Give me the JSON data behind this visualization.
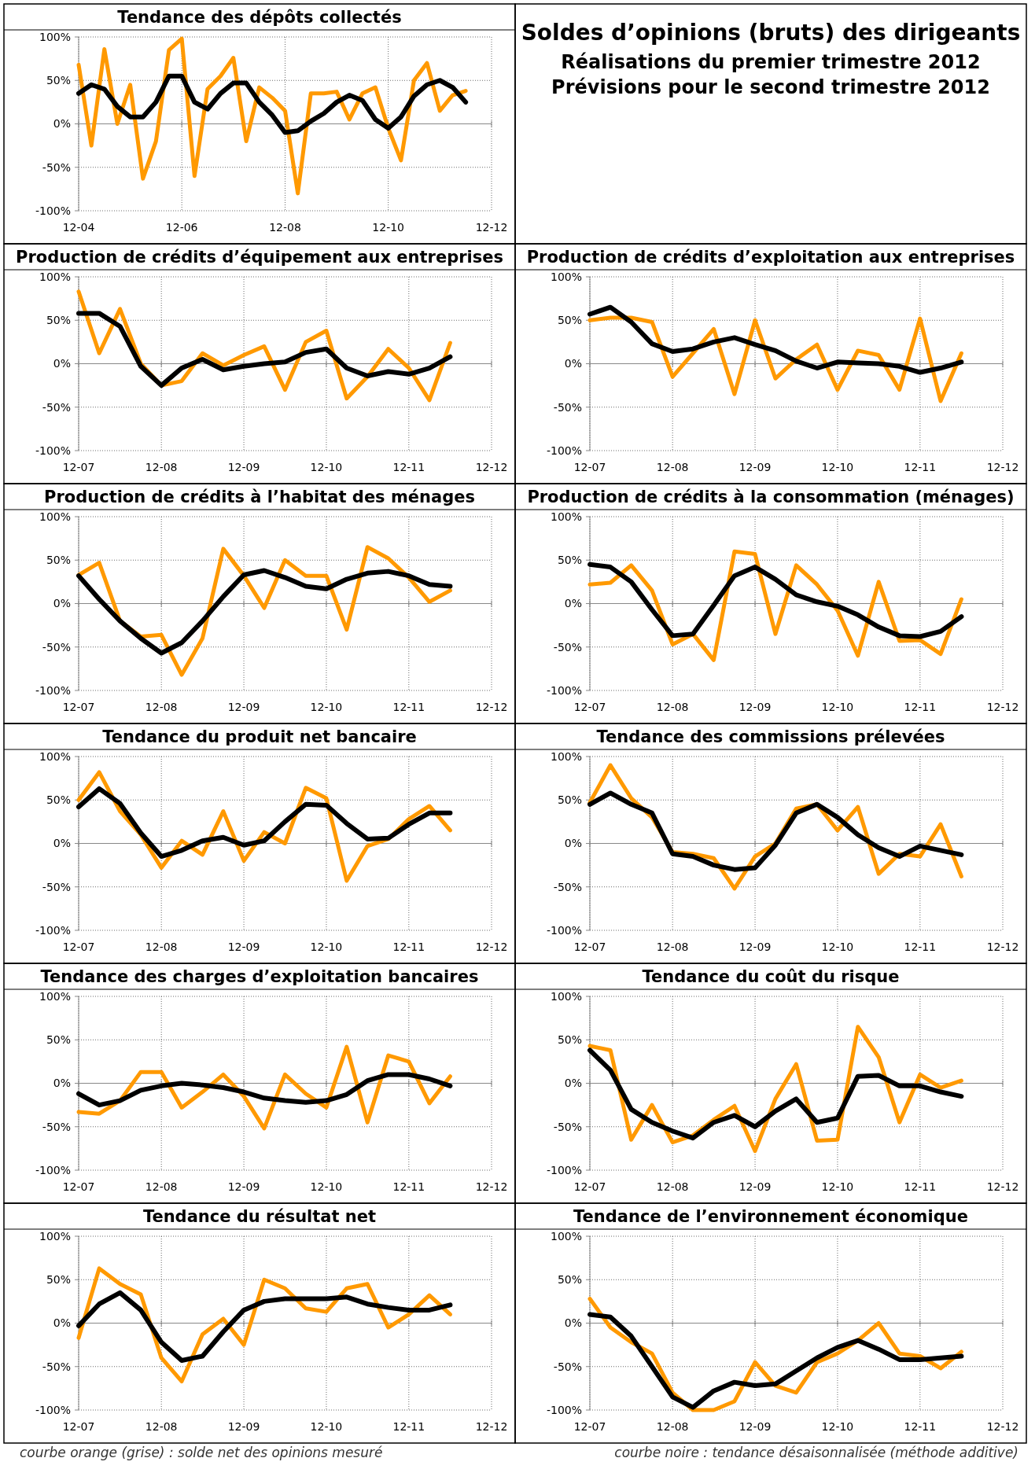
{
  "chart_data": [
    {
      "type": "line",
      "title": "Tendance des dépôts collectés",
      "x": [
        "2004-12",
        "2005-03",
        "2005-06",
        "2005-09",
        "2005-12",
        "2006-03",
        "2006-06",
        "2006-09",
        "2006-12",
        "2007-03",
        "2007-06",
        "2007-09",
        "2007-12",
        "2008-03",
        "2008-06",
        "2008-09",
        "2008-12",
        "2009-03",
        "2009-06",
        "2009-09",
        "2009-12",
        "2010-03",
        "2010-06",
        "2010-09",
        "2010-12",
        "2011-03",
        "2011-06",
        "2011-09",
        "2011-12",
        "2012-03",
        "2012-06"
      ],
      "xlim": [
        "2004-12",
        "2012-12"
      ],
      "xticks": [
        {
          "value": "2004-12",
          "label": "12-04"
        },
        {
          "value": "2006-12",
          "label": "12-06"
        },
        {
          "value": "2008-12",
          "label": "12-08"
        },
        {
          "value": "2010-12",
          "label": "12-10"
        },
        {
          "value": "2012-12",
          "label": "12-12"
        }
      ],
      "ylim": [
        -100,
        100
      ],
      "yticks": [
        {
          "value": -100,
          "label": "-100%"
        },
        {
          "value": -50,
          "label": "-50%"
        },
        {
          "value": 0,
          "label": "0%"
        },
        {
          "value": 50,
          "label": "50%"
        },
        {
          "value": 100,
          "label": "100%"
        }
      ],
      "grid": true,
      "line_style": "solid",
      "series": [
        {
          "color": "#ff9900",
          "values": [
            68,
            -25,
            86,
            0,
            45,
            -63,
            -20,
            85,
            98,
            -60,
            40,
            55,
            76,
            -20,
            42,
            30,
            15,
            -80,
            35,
            35,
            37,
            5,
            35,
            42,
            -5,
            -42,
            50,
            70,
            15,
            33,
            38
          ]
        },
        {
          "color": "#000000",
          "values": [
            35,
            45,
            40,
            20,
            8,
            8,
            25,
            55,
            55,
            25,
            17,
            35,
            47,
            47,
            25,
            10,
            -10,
            -8,
            3,
            12,
            25,
            33,
            27,
            5,
            -5,
            8,
            32,
            45,
            50,
            42,
            25
          ]
        }
      ]
    },
    {
      "type": "other",
      "title": "Soldes d’opinions (bruts) des dirigeants",
      "subtitle": "Réalisations du premier trimestre 2012\nPrévisions pour le second trimestre 2012"
    },
    {
      "type": "line",
      "title": "Production de crédits d’équipement aux entreprises",
      "x": [
        "2007-12",
        "2008-03",
        "2008-06",
        "2008-09",
        "2008-12",
        "2009-03",
        "2009-06",
        "2009-09",
        "2009-12",
        "2010-03",
        "2010-06",
        "2010-09",
        "2010-12",
        "2011-03",
        "2011-06",
        "2011-09",
        "2011-12",
        "2012-03",
        "2012-06"
      ],
      "xlim": [
        "2007-12",
        "2012-12"
      ],
      "xticks": [
        {
          "value": "2007-12",
          "label": "12-07"
        },
        {
          "value": "2008-12",
          "label": "12-08"
        },
        {
          "value": "2009-12",
          "label": "12-09"
        },
        {
          "value": "2010-12",
          "label": "12-10"
        },
        {
          "value": "2011-12",
          "label": "12-11"
        },
        {
          "value": "2012-12",
          "label": "12-12"
        }
      ],
      "ylim": [
        -100,
        100
      ],
      "yticks": [
        {
          "value": -100,
          "label": "-100%"
        },
        {
          "value": -50,
          "label": "-50%"
        },
        {
          "value": 0,
          "label": "0%"
        },
        {
          "value": 50,
          "label": "50%"
        },
        {
          "value": 100,
          "label": "100%"
        }
      ],
      "grid": true,
      "line_style": "solid",
      "series": [
        {
          "color": "#ff9900",
          "values": [
            83,
            12,
            63,
            0,
            -25,
            -20,
            12,
            -2,
            10,
            20,
            -30,
            25,
            38,
            -40,
            -15,
            17,
            -5,
            -42,
            24
          ]
        },
        {
          "color": "#000000",
          "values": [
            58,
            58,
            43,
            -3,
            -25,
            -5,
            5,
            -7,
            -3,
            0,
            2,
            13,
            17,
            -5,
            -14,
            -9,
            -12,
            -5,
            8
          ]
        }
      ]
    },
    {
      "type": "line",
      "title": "Production de crédits d’exploitation aux entreprises",
      "x": [
        "2007-12",
        "2008-03",
        "2008-06",
        "2008-09",
        "2008-12",
        "2009-03",
        "2009-06",
        "2009-09",
        "2009-12",
        "2010-03",
        "2010-06",
        "2010-09",
        "2010-12",
        "2011-03",
        "2011-06",
        "2011-09",
        "2011-12",
        "2012-03",
        "2012-06"
      ],
      "xlim": [
        "2007-12",
        "2012-12"
      ],
      "xticks": [
        {
          "value": "2007-12",
          "label": "12-07"
        },
        {
          "value": "2008-12",
          "label": "12-08"
        },
        {
          "value": "2009-12",
          "label": "12-09"
        },
        {
          "value": "2010-12",
          "label": "12-10"
        },
        {
          "value": "2011-12",
          "label": "12-11"
        },
        {
          "value": "2012-12",
          "label": "12-12"
        }
      ],
      "ylim": [
        -100,
        100
      ],
      "yticks": [
        {
          "value": -100,
          "label": "-100%"
        },
        {
          "value": -50,
          "label": "-50%"
        },
        {
          "value": 0,
          "label": "0%"
        },
        {
          "value": 50,
          "label": "50%"
        },
        {
          "value": 100,
          "label": "100%"
        }
      ],
      "grid": true,
      "line_style": "solid",
      "series": [
        {
          "color": "#ff9900",
          "values": [
            50,
            53,
            53,
            48,
            -15,
            12,
            40,
            -35,
            50,
            -17,
            5,
            22,
            -30,
            15,
            10,
            -30,
            52,
            -43,
            12
          ]
        },
        {
          "color": "#000000",
          "values": [
            57,
            65,
            48,
            23,
            14,
            17,
            25,
            30,
            22,
            15,
            3,
            -5,
            2,
            1,
            0,
            -3,
            -10,
            -5,
            2
          ]
        }
      ]
    },
    {
      "type": "line",
      "title": "Production de crédits à l’habitat des ménages",
      "x": [
        "2007-12",
        "2008-03",
        "2008-06",
        "2008-09",
        "2008-12",
        "2009-03",
        "2009-06",
        "2009-09",
        "2009-12",
        "2010-03",
        "2010-06",
        "2010-09",
        "2010-12",
        "2011-03",
        "2011-06",
        "2011-09",
        "2011-12",
        "2012-03",
        "2012-06"
      ],
      "xlim": [
        "2007-12",
        "2012-12"
      ],
      "xticks": [
        {
          "value": "2007-12",
          "label": "12-07"
        },
        {
          "value": "2008-12",
          "label": "12-08"
        },
        {
          "value": "2009-12",
          "label": "12-09"
        },
        {
          "value": "2010-12",
          "label": "12-10"
        },
        {
          "value": "2011-12",
          "label": "12-11"
        },
        {
          "value": "2012-12",
          "label": "12-12"
        }
      ],
      "ylim": [
        -100,
        100
      ],
      "yticks": [
        {
          "value": -100,
          "label": "-100%"
        },
        {
          "value": -50,
          "label": "-50%"
        },
        {
          "value": 0,
          "label": "0%"
        },
        {
          "value": 50,
          "label": "50%"
        },
        {
          "value": 100,
          "label": "100%"
        }
      ],
      "grid": true,
      "line_style": "solid",
      "series": [
        {
          "color": "#ff9900",
          "values": [
            33,
            47,
            -20,
            -38,
            -36,
            -82,
            -40,
            63,
            32,
            -5,
            50,
            32,
            32,
            -30,
            65,
            52,
            30,
            2,
            15
          ]
        },
        {
          "color": "#000000",
          "values": [
            32,
            5,
            -20,
            -40,
            -57,
            -45,
            -20,
            8,
            33,
            38,
            30,
            20,
            17,
            28,
            35,
            37,
            32,
            22,
            20
          ]
        }
      ]
    },
    {
      "type": "line",
      "title": "Production de crédits à la consommation (ménages)",
      "x": [
        "2007-12",
        "2008-03",
        "2008-06",
        "2008-09",
        "2008-12",
        "2009-03",
        "2009-06",
        "2009-09",
        "2009-12",
        "2010-03",
        "2010-06",
        "2010-09",
        "2010-12",
        "2011-03",
        "2011-06",
        "2011-09",
        "2011-12",
        "2012-03",
        "2012-06"
      ],
      "xlim": [
        "2007-12",
        "2012-12"
      ],
      "xticks": [
        {
          "value": "2007-12",
          "label": "12-07"
        },
        {
          "value": "2008-12",
          "label": "12-08"
        },
        {
          "value": "2009-12",
          "label": "12-09"
        },
        {
          "value": "2010-12",
          "label": "12-10"
        },
        {
          "value": "2011-12",
          "label": "12-11"
        },
        {
          "value": "2012-12",
          "label": "12-12"
        }
      ],
      "ylim": [
        -100,
        100
      ],
      "yticks": [
        {
          "value": -100,
          "label": "-100%"
        },
        {
          "value": -50,
          "label": "-50%"
        },
        {
          "value": 0,
          "label": "0%"
        },
        {
          "value": 50,
          "label": "50%"
        },
        {
          "value": 100,
          "label": "100%"
        }
      ],
      "grid": true,
      "line_style": "solid",
      "series": [
        {
          "color": "#ff9900",
          "values": [
            22,
            24,
            44,
            15,
            -47,
            -35,
            -65,
            60,
            57,
            -35,
            44,
            22,
            -8,
            -60,
            25,
            -43,
            -42,
            -58,
            5
          ]
        },
        {
          "color": "#000000",
          "values": [
            45,
            42,
            25,
            -7,
            -37,
            -35,
            -2,
            32,
            42,
            28,
            10,
            2,
            -3,
            -13,
            -27,
            -37,
            -38,
            -32,
            -15
          ]
        }
      ]
    },
    {
      "type": "line",
      "title": "Tendance du produit net bancaire",
      "x": [
        "2007-12",
        "2008-03",
        "2008-06",
        "2008-09",
        "2008-12",
        "2009-03",
        "2009-06",
        "2009-09",
        "2009-12",
        "2010-03",
        "2010-06",
        "2010-09",
        "2010-12",
        "2011-03",
        "2011-06",
        "2011-09",
        "2011-12",
        "2012-03",
        "2012-06"
      ],
      "xlim": [
        "2007-12",
        "2012-12"
      ],
      "xticks": [
        {
          "value": "2007-12",
          "label": "12-07"
        },
        {
          "value": "2008-12",
          "label": "12-08"
        },
        {
          "value": "2009-12",
          "label": "12-09"
        },
        {
          "value": "2010-12",
          "label": "12-10"
        },
        {
          "value": "2011-12",
          "label": "12-11"
        },
        {
          "value": "2012-12",
          "label": "12-12"
        }
      ],
      "ylim": [
        -100,
        100
      ],
      "yticks": [
        {
          "value": -100,
          "label": "-100%"
        },
        {
          "value": -50,
          "label": "-50%"
        },
        {
          "value": 0,
          "label": "0%"
        },
        {
          "value": 50,
          "label": "50%"
        },
        {
          "value": 100,
          "label": "100%"
        }
      ],
      "grid": true,
      "line_style": "solid",
      "series": [
        {
          "color": "#ff9900",
          "values": [
            50,
            82,
            37,
            10,
            -28,
            3,
            -13,
            37,
            -20,
            13,
            0,
            64,
            52,
            -43,
            -3,
            5,
            28,
            43,
            15
          ]
        },
        {
          "color": "#000000",
          "values": [
            42,
            63,
            46,
            12,
            -15,
            -8,
            3,
            7,
            -2,
            3,
            25,
            45,
            44,
            23,
            5,
            6,
            22,
            35,
            35
          ]
        }
      ]
    },
    {
      "type": "line",
      "title": "Tendance des commissions prélevées",
      "x": [
        "2007-12",
        "2008-03",
        "2008-06",
        "2008-09",
        "2008-12",
        "2009-03",
        "2009-06",
        "2009-09",
        "2009-12",
        "2010-03",
        "2010-06",
        "2010-09",
        "2010-12",
        "2011-03",
        "2011-06",
        "2011-09",
        "2011-12",
        "2012-03",
        "2012-06"
      ],
      "xlim": [
        "2007-12",
        "2012-12"
      ],
      "xticks": [
        {
          "value": "2007-12",
          "label": "12-07"
        },
        {
          "value": "2008-12",
          "label": "12-08"
        },
        {
          "value": "2009-12",
          "label": "12-09"
        },
        {
          "value": "2010-12",
          "label": "12-10"
        },
        {
          "value": "2011-12",
          "label": "12-11"
        },
        {
          "value": "2012-12",
          "label": "12-12"
        }
      ],
      "ylim": [
        -100,
        100
      ],
      "yticks": [
        {
          "value": -100,
          "label": "-100%"
        },
        {
          "value": -50,
          "label": "-50%"
        },
        {
          "value": 0,
          "label": "0%"
        },
        {
          "value": 50,
          "label": "50%"
        },
        {
          "value": 100,
          "label": "100%"
        }
      ],
      "grid": true,
      "line_style": "solid",
      "series": [
        {
          "color": "#ff9900",
          "values": [
            47,
            90,
            52,
            30,
            -10,
            -12,
            -17,
            -52,
            -15,
            0,
            40,
            45,
            15,
            42,
            -35,
            -12,
            -15,
            22,
            -38
          ]
        },
        {
          "color": "#000000",
          "values": [
            45,
            58,
            45,
            35,
            -12,
            -15,
            -25,
            -30,
            -28,
            -2,
            35,
            45,
            30,
            10,
            -5,
            -15,
            -3,
            -8,
            -13
          ]
        }
      ]
    },
    {
      "type": "line",
      "title": "Tendance des charges d’exploitation bancaires",
      "x": [
        "2007-12",
        "2008-03",
        "2008-06",
        "2008-09",
        "2008-12",
        "2009-03",
        "2009-06",
        "2009-09",
        "2009-12",
        "2010-03",
        "2010-06",
        "2010-09",
        "2010-12",
        "2011-03",
        "2011-06",
        "2011-09",
        "2011-12",
        "2012-03",
        "2012-06"
      ],
      "xlim": [
        "2007-12",
        "2012-12"
      ],
      "xticks": [
        {
          "value": "2007-12",
          "label": "12-07"
        },
        {
          "value": "2008-12",
          "label": "12-08"
        },
        {
          "value": "2009-12",
          "label": "12-09"
        },
        {
          "value": "2010-12",
          "label": "12-10"
        },
        {
          "value": "2011-12",
          "label": "12-11"
        },
        {
          "value": "2012-12",
          "label": "12-12"
        }
      ],
      "ylim": [
        -100,
        100
      ],
      "yticks": [
        {
          "value": -100,
          "label": "-100%"
        },
        {
          "value": -50,
          "label": "-50%"
        },
        {
          "value": 0,
          "label": "0%"
        },
        {
          "value": 50,
          "label": "50%"
        },
        {
          "value": 100,
          "label": "100%"
        }
      ],
      "grid": true,
      "line_style": "solid",
      "series": [
        {
          "color": "#ff9900",
          "values": [
            -33,
            -35,
            -20,
            13,
            13,
            -28,
            -10,
            10,
            -15,
            -52,
            10,
            -12,
            -28,
            42,
            -45,
            32,
            25,
            -23,
            8
          ]
        },
        {
          "color": "#000000",
          "values": [
            -12,
            -25,
            -20,
            -8,
            -3,
            0,
            -2,
            -5,
            -10,
            -17,
            -20,
            -22,
            -20,
            -13,
            3,
            10,
            10,
            5,
            -3
          ]
        }
      ]
    },
    {
      "type": "line",
      "title": "Tendance du coût du risque",
      "x": [
        "2007-12",
        "2008-03",
        "2008-06",
        "2008-09",
        "2008-12",
        "2009-03",
        "2009-06",
        "2009-09",
        "2009-12",
        "2010-03",
        "2010-06",
        "2010-09",
        "2010-12",
        "2011-03",
        "2011-06",
        "2011-09",
        "2011-12",
        "2012-03",
        "2012-06"
      ],
      "xlim": [
        "2007-12",
        "2012-12"
      ],
      "xticks": [
        {
          "value": "2007-12",
          "label": "12-07"
        },
        {
          "value": "2008-12",
          "label": "12-08"
        },
        {
          "value": "2009-12",
          "label": "12-09"
        },
        {
          "value": "2010-12",
          "label": "12-10"
        },
        {
          "value": "2011-12",
          "label": "12-11"
        },
        {
          "value": "2012-12",
          "label": "12-12"
        }
      ],
      "ylim": [
        -100,
        100
      ],
      "yticks": [
        {
          "value": -100,
          "label": "-100%"
        },
        {
          "value": -50,
          "label": "-50%"
        },
        {
          "value": 0,
          "label": "0%"
        },
        {
          "value": 50,
          "label": "50%"
        },
        {
          "value": 100,
          "label": "100%"
        }
      ],
      "grid": true,
      "line_style": "solid",
      "series": [
        {
          "color": "#ff9900",
          "values": [
            43,
            38,
            -65,
            -25,
            -68,
            -60,
            -42,
            -26,
            -78,
            -18,
            22,
            -66,
            -65,
            65,
            30,
            -45,
            10,
            -5,
            3
          ]
        },
        {
          "color": "#000000",
          "values": [
            38,
            15,
            -30,
            -45,
            -55,
            -63,
            -45,
            -37,
            -50,
            -32,
            -18,
            -45,
            -40,
            8,
            9,
            -3,
            -3,
            -10,
            -15
          ]
        }
      ]
    },
    {
      "type": "line",
      "title": "Tendance du résultat net",
      "x": [
        "2007-12",
        "2008-03",
        "2008-06",
        "2008-09",
        "2008-12",
        "2009-03",
        "2009-06",
        "2009-09",
        "2009-12",
        "2010-03",
        "2010-06",
        "2010-09",
        "2010-12",
        "2011-03",
        "2011-06",
        "2011-09",
        "2011-12",
        "2012-03",
        "2012-06"
      ],
      "xlim": [
        "2007-12",
        "2012-12"
      ],
      "xticks": [
        {
          "value": "2007-12",
          "label": "12-07"
        },
        {
          "value": "2008-12",
          "label": "12-08"
        },
        {
          "value": "2009-12",
          "label": "12-09"
        },
        {
          "value": "2010-12",
          "label": "12-10"
        },
        {
          "value": "2011-12",
          "label": "12-11"
        },
        {
          "value": "2012-12",
          "label": "12-12"
        }
      ],
      "ylim": [
        -100,
        100
      ],
      "yticks": [
        {
          "value": -100,
          "label": "-100%"
        },
        {
          "value": -50,
          "label": "-50%"
        },
        {
          "value": 0,
          "label": "0%"
        },
        {
          "value": 50,
          "label": "50%"
        },
        {
          "value": 100,
          "label": "100%"
        }
      ],
      "grid": true,
      "line_style": "solid",
      "annotations": [
        "courbe orange (grise) : solde net des opinions mesuré"
      ],
      "series": [
        {
          "color": "#ff9900",
          "values": [
            -17,
            63,
            45,
            33,
            -40,
            -67,
            -13,
            5,
            -25,
            50,
            40,
            17,
            13,
            40,
            45,
            -5,
            10,
            32,
            10
          ]
        },
        {
          "color": "#000000",
          "values": [
            -3,
            22,
            35,
            15,
            -22,
            -43,
            -38,
            -10,
            15,
            25,
            28,
            28,
            28,
            30,
            22,
            18,
            15,
            15,
            21
          ]
        }
      ]
    },
    {
      "type": "line",
      "title": "Tendance de l’environnement économique",
      "x": [
        "2007-12",
        "2008-03",
        "2008-06",
        "2008-09",
        "2008-12",
        "2009-03",
        "2009-06",
        "2009-09",
        "2009-12",
        "2010-03",
        "2010-06",
        "2010-09",
        "2010-12",
        "2011-03",
        "2011-06",
        "2011-09",
        "2011-12",
        "2012-03",
        "2012-06"
      ],
      "xlim": [
        "2007-12",
        "2012-12"
      ],
      "xticks": [
        {
          "value": "2007-12",
          "label": "12-07"
        },
        {
          "value": "2008-12",
          "label": "12-08"
        },
        {
          "value": "2009-12",
          "label": "12-09"
        },
        {
          "value": "2010-12",
          "label": "12-10"
        },
        {
          "value": "2011-12",
          "label": "12-11"
        },
        {
          "value": "2012-12",
          "label": "12-12"
        }
      ],
      "ylim": [
        -100,
        100
      ],
      "yticks": [
        {
          "value": -100,
          "label": "-100%"
        },
        {
          "value": -50,
          "label": "-50%"
        },
        {
          "value": 0,
          "label": "0%"
        },
        {
          "value": 50,
          "label": "50%"
        },
        {
          "value": 100,
          "label": "100%"
        }
      ],
      "grid": true,
      "line_style": "solid",
      "annotations": [
        "courbe noire : tendance désaisonnalisée (méthode additive)"
      ],
      "series": [
        {
          "color": "#ff9900",
          "values": [
            28,
            -5,
            -22,
            -35,
            -80,
            -100,
            -100,
            -90,
            -45,
            -72,
            -80,
            -45,
            -35,
            -20,
            0,
            -35,
            -38,
            -52,
            -33
          ]
        },
        {
          "color": "#000000",
          "values": [
            10,
            7,
            -15,
            -50,
            -85,
            -97,
            -78,
            -68,
            -72,
            -70,
            -55,
            -40,
            -28,
            -20,
            -30,
            -42,
            -42,
            -40,
            -38
          ]
        }
      ]
    }
  ]
}
